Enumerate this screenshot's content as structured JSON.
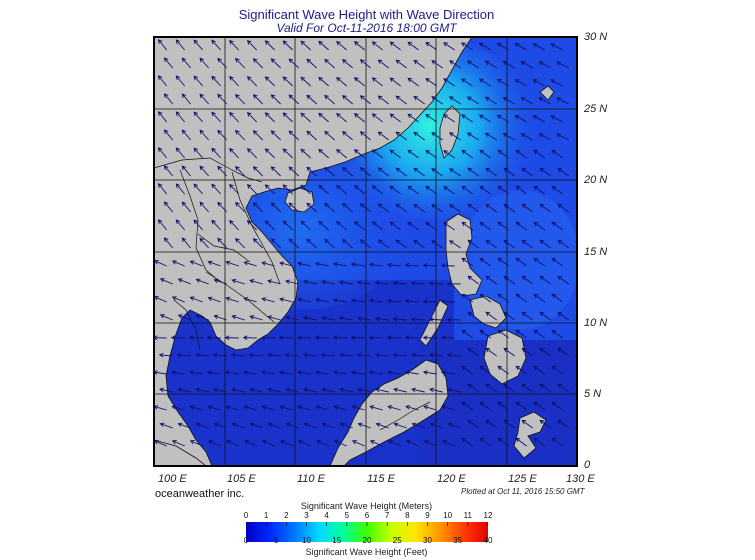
{
  "title": "Significant Wave Height with Wave Direction",
  "subtitle": "Valid For Oct-11-2016 18:00 GMT",
  "credit": "oceanweather inc.",
  "plotted_note": "Plotted at Oct 11, 2016 15:50 GMT",
  "lat_labels": [
    "30 N",
    "25 N",
    "20 N",
    "15 N",
    "10 N",
    "5 N",
    "0"
  ],
  "lon_labels": [
    "100 E",
    "105 E",
    "110 E",
    "115 E",
    "120 E",
    "125 E",
    "130 E"
  ],
  "legend": {
    "meters_title": "Significant Wave Height (Meters)",
    "feet_title": "Significant Wave Height (Feet)",
    "meters_ticks": [
      "0",
      "1",
      "2",
      "3",
      "4",
      "5",
      "6",
      "7",
      "8",
      "9",
      "10",
      "11",
      "12"
    ],
    "feet_ticks": [
      "0",
      "5",
      "10",
      "15",
      "20",
      "25",
      "30",
      "35",
      "40"
    ],
    "colors": [
      "#0000c8",
      "#0028ff",
      "#0078ff",
      "#00d8ff",
      "#00ffa0",
      "#40ff00",
      "#c8ff00",
      "#ffe600",
      "#ff9600",
      "#ff3c00",
      "#e60000"
    ]
  },
  "colors": {
    "land": "#c0c0c0",
    "sea_deep": "#1e4be6",
    "sea_calm": "#1a32cc",
    "sea_high": "#2ee0e0",
    "arrow": "#10106a",
    "title": "#1c1c8c"
  }
}
